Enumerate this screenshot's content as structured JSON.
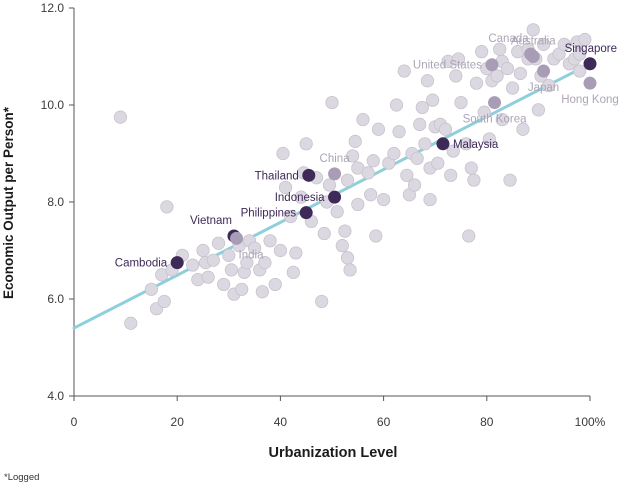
{
  "chart_data": {
    "type": "scatter",
    "title": "",
    "xlabel": "Urbanization Level",
    "ylabel": "Economic Output per Person*",
    "footnote": "*Logged",
    "xlim": [
      0,
      100
    ],
    "ylim": [
      4.0,
      12.0
    ],
    "x_ticks": [
      0,
      20,
      40,
      60,
      80,
      100
    ],
    "x_tick_labels": [
      "0",
      "20",
      "40",
      "60",
      "80",
      "100%"
    ],
    "y_ticks": [
      4.0,
      6.0,
      8.0,
      10.0,
      12.0
    ],
    "y_tick_labels": [
      "4.0",
      "6.0",
      "8.0",
      "10.0",
      "12.0"
    ],
    "grid": false,
    "trend_line": {
      "x": [
        0,
        100
      ],
      "y": [
        5.4,
        10.85
      ],
      "color": "#8dd0dc"
    },
    "colors": {
      "background_point": "#dcd8e1",
      "background_stroke": "#c7c2cc",
      "highlight_dark": "#3e2a58",
      "highlight_light": "#a99db6",
      "label_dark": "#3e2a58",
      "label_light": "#ada5b6"
    },
    "highlighted": [
      {
        "name": "Singapore",
        "x": 100,
        "y": 10.85,
        "tone": "dark",
        "label_pos": "above-left"
      },
      {
        "name": "Malaysia",
        "x": 71.5,
        "y": 9.2,
        "tone": "dark",
        "label_pos": "right"
      },
      {
        "name": "Thailand",
        "x": 45.5,
        "y": 8.55,
        "tone": "dark",
        "label_pos": "left"
      },
      {
        "name": "Indonesia",
        "x": 50.5,
        "y": 8.1,
        "tone": "dark",
        "label_pos": "left"
      },
      {
        "name": "Philippines",
        "x": 45,
        "y": 7.78,
        "tone": "dark",
        "label_pos": "left"
      },
      {
        "name": "Vietnam",
        "x": 31,
        "y": 7.3,
        "tone": "dark",
        "label_pos": "above-left"
      },
      {
        "name": "Cambodia",
        "x": 20,
        "y": 6.75,
        "tone": "dark",
        "label_pos": "left"
      },
      {
        "name": "China",
        "x": 50.5,
        "y": 8.58,
        "tone": "light",
        "label_pos": "above"
      },
      {
        "name": "India",
        "x": 31.5,
        "y": 7.25,
        "tone": "light",
        "label_pos": "below-right"
      },
      {
        "name": "South Korea",
        "x": 81.5,
        "y": 10.05,
        "tone": "light",
        "label_pos": "below"
      },
      {
        "name": "United States",
        "x": 81,
        "y": 10.83,
        "tone": "light",
        "label_pos": "left"
      },
      {
        "name": "Canada",
        "x": 88.5,
        "y": 11.05,
        "tone": "light",
        "label_pos": "above-left"
      },
      {
        "name": "Australia",
        "x": 89,
        "y": 11.0,
        "tone": "light",
        "label_pos": "above"
      },
      {
        "name": "Japan",
        "x": 91,
        "y": 10.7,
        "tone": "light",
        "label_pos": "below"
      },
      {
        "name": "Hong Kong",
        "x": 100,
        "y": 10.45,
        "tone": "light",
        "label_pos": "below"
      }
    ],
    "background_points": [
      [
        9,
        9.75
      ],
      [
        11,
        5.5
      ],
      [
        15,
        6.2
      ],
      [
        16,
        5.8
      ],
      [
        17,
        6.5
      ],
      [
        17.5,
        5.95
      ],
      [
        18,
        7.9
      ],
      [
        19,
        6.6
      ],
      [
        21,
        6.9
      ],
      [
        23,
        6.7
      ],
      [
        24,
        6.4
      ],
      [
        25,
        7.0
      ],
      [
        25.5,
        6.75
      ],
      [
        26,
        6.45
      ],
      [
        27,
        6.8
      ],
      [
        28,
        7.15
      ],
      [
        29,
        6.3
      ],
      [
        30,
        6.9
      ],
      [
        30.5,
        6.6
      ],
      [
        31,
        6.1
      ],
      [
        32,
        7.1
      ],
      [
        32.5,
        6.2
      ],
      [
        33,
        6.55
      ],
      [
        33.5,
        6.75
      ],
      [
        34,
        7.2
      ],
      [
        35,
        7.05
      ],
      [
        36,
        6.6
      ],
      [
        36.5,
        6.15
      ],
      [
        37,
        6.75
      ],
      [
        38,
        7.2
      ],
      [
        39,
        6.3
      ],
      [
        40,
        7.0
      ],
      [
        40.5,
        9.0
      ],
      [
        41,
        8.3
      ],
      [
        42,
        7.7
      ],
      [
        42.5,
        6.55
      ],
      [
        43,
        6.95
      ],
      [
        44,
        8.1
      ],
      [
        44.5,
        8.6
      ],
      [
        45,
        9.2
      ],
      [
        46,
        7.6
      ],
      [
        47,
        8.5
      ],
      [
        48,
        5.95
      ],
      [
        48.5,
        7.35
      ],
      [
        49,
        8.0
      ],
      [
        49.5,
        8.35
      ],
      [
        50,
        10.05
      ],
      [
        51,
        7.8
      ],
      [
        52,
        7.1
      ],
      [
        52.5,
        7.4
      ],
      [
        53,
        6.85
      ],
      [
        53,
        8.45
      ],
      [
        53.5,
        6.6
      ],
      [
        54,
        8.95
      ],
      [
        54.5,
        9.25
      ],
      [
        55,
        7.95
      ],
      [
        55,
        8.7
      ],
      [
        56,
        9.7
      ],
      [
        57,
        8.6
      ],
      [
        57.5,
        8.15
      ],
      [
        58,
        8.85
      ],
      [
        58.5,
        7.3
      ],
      [
        59,
        9.5
      ],
      [
        60,
        8.05
      ],
      [
        61,
        8.8
      ],
      [
        62,
        9.0
      ],
      [
        62.5,
        10.0
      ],
      [
        63,
        9.45
      ],
      [
        64,
        10.7
      ],
      [
        64.5,
        8.55
      ],
      [
        65,
        8.15
      ],
      [
        65.5,
        9.0
      ],
      [
        66,
        8.35
      ],
      [
        66.5,
        8.9
      ],
      [
        67,
        9.6
      ],
      [
        67.5,
        9.95
      ],
      [
        68,
        9.2
      ],
      [
        68.5,
        10.5
      ],
      [
        69,
        8.05
      ],
      [
        69,
        8.7
      ],
      [
        69.5,
        10.1
      ],
      [
        70,
        9.55
      ],
      [
        70.5,
        8.8
      ],
      [
        71,
        9.6
      ],
      [
        72,
        9.5
      ],
      [
        72.5,
        10.9
      ],
      [
        73,
        8.55
      ],
      [
        73.5,
        9.05
      ],
      [
        74,
        10.6
      ],
      [
        74.5,
        10.95
      ],
      [
        75,
        10.05
      ],
      [
        76,
        9.2
      ],
      [
        76.5,
        7.3
      ],
      [
        77,
        8.7
      ],
      [
        77.5,
        8.45
      ],
      [
        78,
        10.45
      ],
      [
        79,
        11.1
      ],
      [
        79.5,
        9.85
      ],
      [
        80,
        10.75
      ],
      [
        80.5,
        9.3
      ],
      [
        81,
        10.5
      ],
      [
        82,
        10.6
      ],
      [
        82.5,
        11.15
      ],
      [
        83,
        9.7
      ],
      [
        83,
        10.9
      ],
      [
        84,
        10.75
      ],
      [
        84.5,
        8.45
      ],
      [
        85,
        10.35
      ],
      [
        86,
        11.1
      ],
      [
        86.5,
        10.65
      ],
      [
        87,
        9.5
      ],
      [
        88,
        10.95
      ],
      [
        88,
        11.15
      ],
      [
        89,
        11.55
      ],
      [
        89.5,
        10.95
      ],
      [
        90,
        9.9
      ],
      [
        90.5,
        10.6
      ],
      [
        91,
        11.25
      ],
      [
        92,
        10.4
      ],
      [
        93,
        10.95
      ],
      [
        94,
        11.05
      ],
      [
        95,
        11.25
      ],
      [
        96,
        10.85
      ],
      [
        97,
        10.95
      ],
      [
        97.5,
        11.3
      ],
      [
        98,
        11.05
      ],
      [
        99,
        11.35
      ],
      [
        98,
        10.7
      ]
    ]
  }
}
